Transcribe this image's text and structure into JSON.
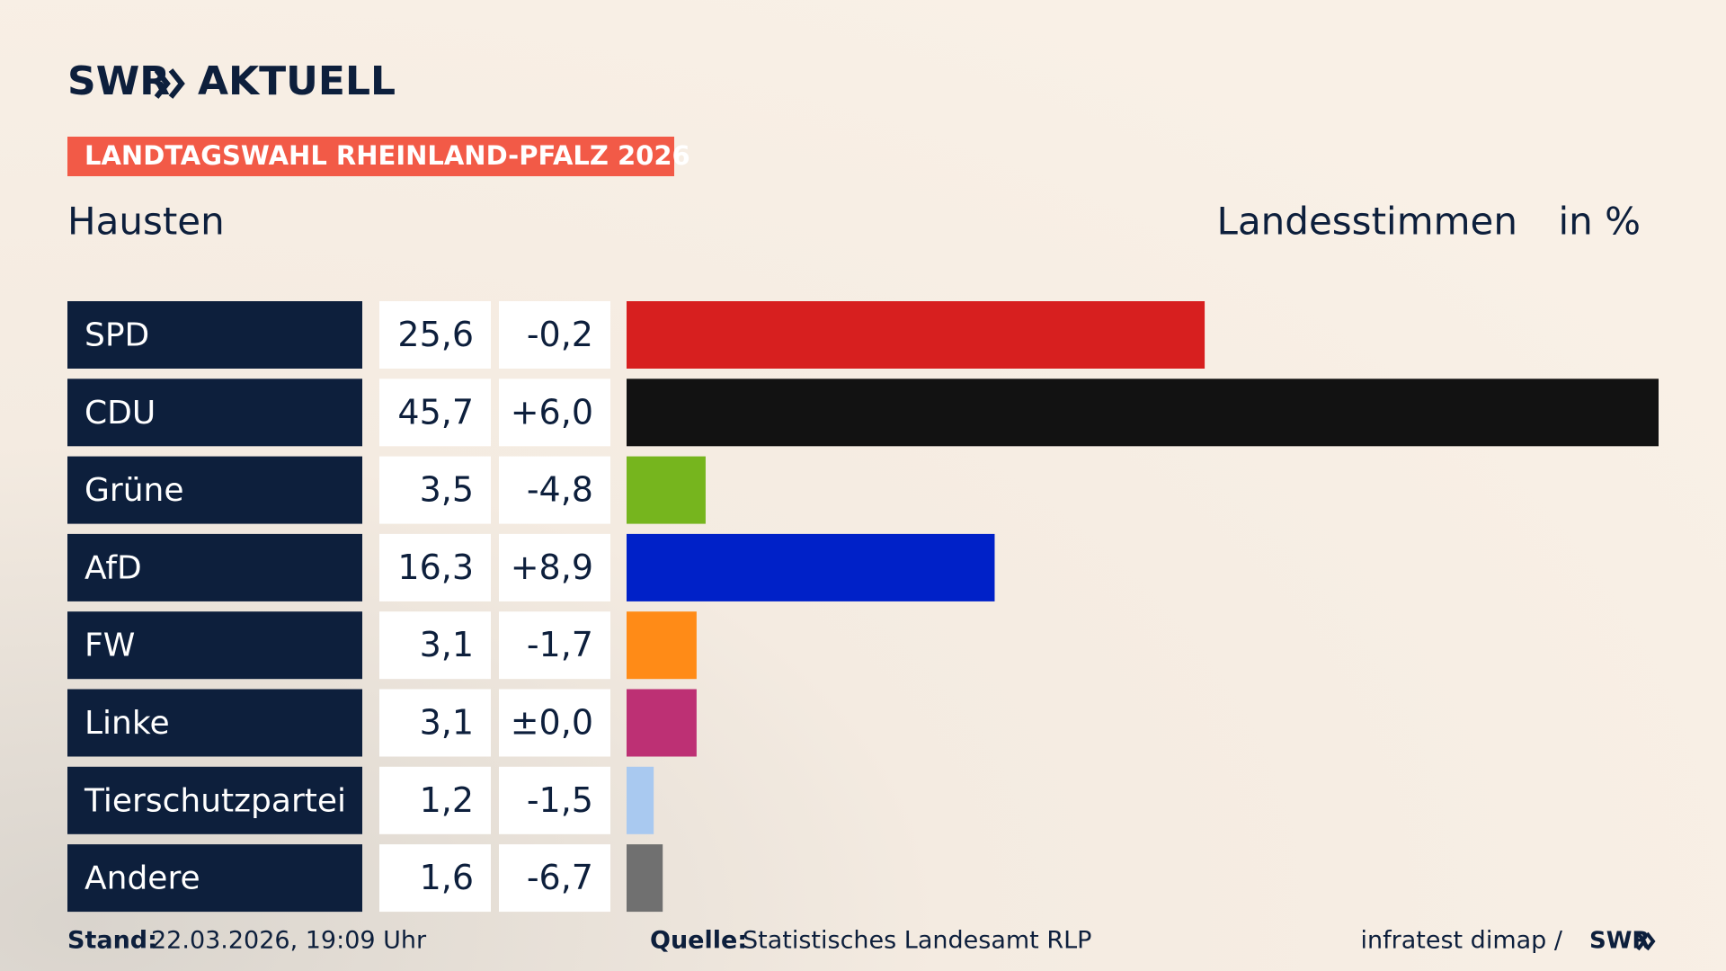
{
  "brand": {
    "logo": "SWR",
    "section": "AKTUELL"
  },
  "badge": "LANDTAGSWAHL RHEINLAND-PFALZ 2026",
  "chart_data": {
    "type": "bar",
    "orientation": "horizontal",
    "title": "Hausten",
    "subtitle": "Landesstimmen",
    "unit_label": "in %",
    "categories": [
      "SPD",
      "CDU",
      "Grüne",
      "AfD",
      "FW",
      "Linke",
      "Tierschutzpartei",
      "Andere"
    ],
    "values": [
      25.6,
      45.7,
      3.5,
      16.3,
      3.1,
      3.1,
      1.2,
      1.6
    ],
    "value_labels": [
      "25,6",
      "45,7",
      "3,5",
      "16,3",
      "3,1",
      "3,1",
      "1,2",
      "1,6"
    ],
    "changes": [
      -0.2,
      6.0,
      -4.8,
      8.9,
      -1.7,
      0.0,
      -1.5,
      -6.7
    ],
    "change_labels": [
      "-0,2",
      "+6,0",
      "-4,8",
      "+8,9",
      "-1,7",
      "±0,0",
      "-1,5",
      "-6,7"
    ],
    "colors": [
      "#d71f1f",
      "#121212",
      "#76b51e",
      "#0021c8",
      "#ff8b17",
      "#bd3074",
      "#a9c9f0",
      "#707070"
    ],
    "xlim": [
      0,
      45.7
    ]
  },
  "footer": {
    "stand_label": "Stand:",
    "stand": "22.03.2026, 19:09 Uhr",
    "source_label": "Quelle:",
    "source": "Statistisches Landesamt RLP",
    "credit": "infratest dimap /",
    "credit_logo": "SWR"
  }
}
